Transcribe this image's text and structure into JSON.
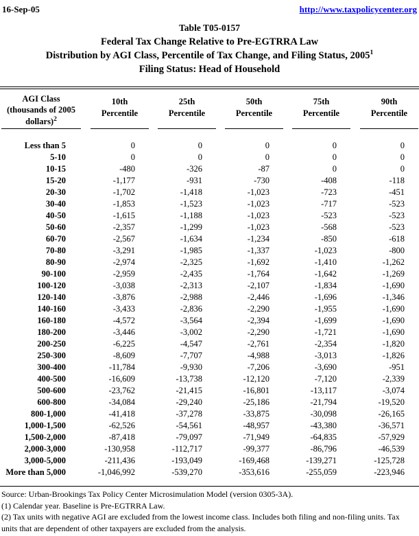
{
  "page": {
    "date": "16-Sep-05",
    "url": "http://www.taxpolicycenter.org"
  },
  "title": {
    "line1": "Table T05-0157",
    "line2": "Federal Tax Change Relative to Pre-EGTRRA Law",
    "line3": "Distribution by AGI Class, Percentile of Tax Change, and Filing Status, 2005",
    "line3_sup": "1",
    "line4": "Filing Status: Head of Household"
  },
  "table": {
    "row_header_line1": "AGI Class",
    "row_header_line2": "(thousands of 2005",
    "row_header_line3": "dollars)",
    "row_header_sup": "2",
    "columns": [
      {
        "line1": "10th",
        "line2": "Percentile"
      },
      {
        "line1": "25th",
        "line2": "Percentile"
      },
      {
        "line1": "50th",
        "line2": "Percentile"
      },
      {
        "line1": "75th",
        "line2": "Percentile"
      },
      {
        "line1": "90th",
        "line2": "Percentile"
      }
    ],
    "rows": [
      {
        "label": "Less than 5",
        "values": [
          "0",
          "0",
          "0",
          "0",
          "0"
        ]
      },
      {
        "label": "5-10",
        "values": [
          "0",
          "0",
          "0",
          "0",
          "0"
        ]
      },
      {
        "label": "10-15",
        "values": [
          "-480",
          "-326",
          "-87",
          "0",
          "0"
        ]
      },
      {
        "label": "15-20",
        "values": [
          "-1,177",
          "-931",
          "-730",
          "-408",
          "-118"
        ]
      },
      {
        "label": "20-30",
        "values": [
          "-1,702",
          "-1,418",
          "-1,023",
          "-723",
          "-451"
        ]
      },
      {
        "label": "30-40",
        "values": [
          "-1,853",
          "-1,523",
          "-1,023",
          "-717",
          "-523"
        ]
      },
      {
        "label": "40-50",
        "values": [
          "-1,615",
          "-1,188",
          "-1,023",
          "-523",
          "-523"
        ]
      },
      {
        "label": "50-60",
        "values": [
          "-2,357",
          "-1,299",
          "-1,023",
          "-568",
          "-523"
        ]
      },
      {
        "label": "60-70",
        "values": [
          "-2,567",
          "-1,634",
          "-1,234",
          "-850",
          "-618"
        ]
      },
      {
        "label": "70-80",
        "values": [
          "-3,291",
          "-1,985",
          "-1,337",
          "-1,023",
          "-800"
        ]
      },
      {
        "label": "80-90",
        "values": [
          "-2,974",
          "-2,325",
          "-1,692",
          "-1,410",
          "-1,262"
        ]
      },
      {
        "label": "90-100",
        "values": [
          "-2,959",
          "-2,435",
          "-1,764",
          "-1,642",
          "-1,269"
        ]
      },
      {
        "label": "100-120",
        "values": [
          "-3,038",
          "-2,313",
          "-2,107",
          "-1,834",
          "-1,690"
        ]
      },
      {
        "label": "120-140",
        "values": [
          "-3,876",
          "-2,988",
          "-2,446",
          "-1,696",
          "-1,346"
        ]
      },
      {
        "label": "140-160",
        "values": [
          "-3,433",
          "-2,836",
          "-2,290",
          "-1,955",
          "-1,690"
        ]
      },
      {
        "label": "160-180",
        "values": [
          "-4,572",
          "-3,564",
          "-2,394",
          "-1,699",
          "-1,690"
        ]
      },
      {
        "label": "180-200",
        "values": [
          "-3,446",
          "-3,002",
          "-2,290",
          "-1,721",
          "-1,690"
        ]
      },
      {
        "label": "200-250",
        "values": [
          "-6,225",
          "-4,547",
          "-2,761",
          "-2,354",
          "-1,820"
        ]
      },
      {
        "label": "250-300",
        "values": [
          "-8,609",
          "-7,707",
          "-4,988",
          "-3,013",
          "-1,826"
        ]
      },
      {
        "label": "300-400",
        "values": [
          "-11,784",
          "-9,930",
          "-7,206",
          "-3,690",
          "-951"
        ]
      },
      {
        "label": "400-500",
        "values": [
          "-16,609",
          "-13,738",
          "-12,120",
          "-7,120",
          "-2,339"
        ]
      },
      {
        "label": "500-600",
        "values": [
          "-23,762",
          "-21,415",
          "-16,801",
          "-13,117",
          "-3,074"
        ]
      },
      {
        "label": "600-800",
        "values": [
          "-34,084",
          "-29,240",
          "-25,186",
          "-21,794",
          "-19,520"
        ]
      },
      {
        "label": "800-1,000",
        "values": [
          "-41,418",
          "-37,278",
          "-33,875",
          "-30,098",
          "-26,165"
        ]
      },
      {
        "label": "1,000-1,500",
        "values": [
          "-62,526",
          "-54,561",
          "-48,957",
          "-43,380",
          "-36,571"
        ]
      },
      {
        "label": "1,500-2,000",
        "values": [
          "-87,418",
          "-79,097",
          "-71,949",
          "-64,835",
          "-57,929"
        ]
      },
      {
        "label": "2,000-3,000",
        "values": [
          "-130,958",
          "-112,717",
          "-99,377",
          "-86,796",
          "-46,539"
        ]
      },
      {
        "label": "3,000-5,000",
        "values": [
          "-211,436",
          "-193,049",
          "-169,468",
          "-139,271",
          "-125,728"
        ]
      },
      {
        "label": "More than 5,000",
        "values": [
          "-1,046,992",
          "-539,270",
          "-353,616",
          "-255,059",
          "-223,946"
        ]
      }
    ]
  },
  "footnotes": {
    "source": "Source: Urban-Brookings Tax Policy Center Microsimulation Model (version 0305-3A).",
    "note1": "(1) Calendar year. Baseline is Pre-EGTRRA Law.",
    "note2": "(2) Tax units with negative AGI are excluded from the lowest income class. Includes both filing and non-filing units. Tax units that are dependent of other taxpayers are excluded from the analysis."
  },
  "colors": {
    "link": "#0000ff",
    "text": "#000000",
    "background": "#ffffff"
  }
}
